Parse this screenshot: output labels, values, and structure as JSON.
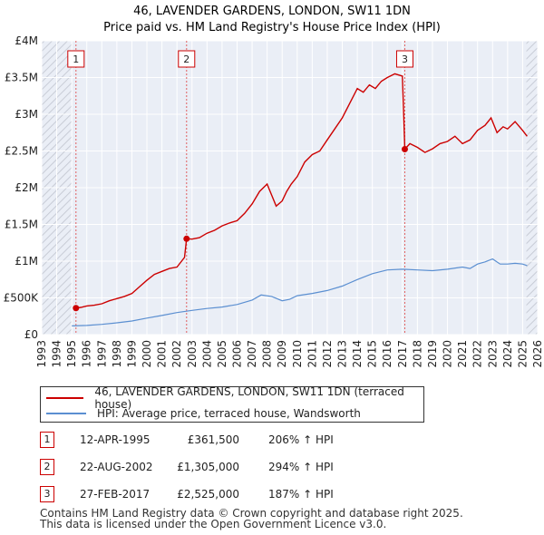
{
  "chart_data": {
    "type": "line",
    "title": "46, LAVENDER GARDENS, LONDON, SW11 1DN",
    "subtitle": "Price paid vs. HM Land Registry's House Price Index (HPI)",
    "xlabel": "",
    "ylabel": "",
    "xlim": [
      1993,
      2026
    ],
    "ylim": [
      0,
      4000000
    ],
    "x_ticks": [
      "1993",
      "1994",
      "1995",
      "1996",
      "1997",
      "1998",
      "1999",
      "2000",
      "2001",
      "2002",
      "2003",
      "2004",
      "2005",
      "2006",
      "2007",
      "2008",
      "2009",
      "2010",
      "2011",
      "2012",
      "2013",
      "2014",
      "2015",
      "2016",
      "2017",
      "2018",
      "2019",
      "2020",
      "2021",
      "2022",
      "2023",
      "2024",
      "2025",
      "2026"
    ],
    "y_ticks": [
      {
        "value": 0,
        "label": "£0"
      },
      {
        "value": 500000,
        "label": "£500K"
      },
      {
        "value": 1000000,
        "label": "£1M"
      },
      {
        "value": 1500000,
        "label": "£1.5M"
      },
      {
        "value": 2000000,
        "label": "£2M"
      },
      {
        "value": 2500000,
        "label": "£2.5M"
      },
      {
        "value": 3000000,
        "label": "£3M"
      },
      {
        "value": 3500000,
        "label": "£3.5M"
      },
      {
        "value": 4000000,
        "label": "£4M"
      }
    ],
    "grid": true,
    "series": [
      {
        "name": "46, LAVENDER GARDENS, LONDON, SW11 1DN (terraced house)",
        "color": "#cc0000",
        "x": [
          1995.28,
          1995.6,
          1996.0,
          1996.5,
          1997.0,
          1997.5,
          1998.0,
          1998.5,
          1999.0,
          1999.5,
          2000.0,
          2000.5,
          2001.0,
          2001.5,
          2002.0,
          2002.5,
          2002.64,
          2003.0,
          2003.5,
          2004.0,
          2004.5,
          2005.0,
          2005.5,
          2006.0,
          2006.5,
          2007.0,
          2007.5,
          2008.0,
          2008.3,
          2008.6,
          2009.0,
          2009.3,
          2009.6,
          2010.0,
          2010.5,
          2011.0,
          2011.5,
          2012.0,
          2012.5,
          2013.0,
          2013.5,
          2014.0,
          2014.4,
          2014.8,
          2015.2,
          2015.6,
          2016.0,
          2016.5,
          2017.0,
          2017.16,
          2017.5,
          2018.0,
          2018.5,
          2019.0,
          2019.5,
          2020.0,
          2020.5,
          2021.0,
          2021.5,
          2022.0,
          2022.5,
          2022.9,
          2023.3,
          2023.7,
          2024.0,
          2024.5,
          2025.0,
          2025.3
        ],
        "y": [
          361500,
          370000,
          390000,
          400000,
          420000,
          460000,
          490000,
          520000,
          560000,
          650000,
          740000,
          820000,
          860000,
          900000,
          920000,
          1050000,
          1305000,
          1300000,
          1320000,
          1380000,
          1420000,
          1480000,
          1520000,
          1550000,
          1650000,
          1780000,
          1950000,
          2050000,
          1900000,
          1750000,
          1820000,
          1950000,
          2050000,
          2150000,
          2350000,
          2450000,
          2500000,
          2650000,
          2800000,
          2950000,
          3150000,
          3350000,
          3300000,
          3400000,
          3350000,
          3450000,
          3500000,
          3550000,
          3520000,
          2525000,
          2600000,
          2550000,
          2480000,
          2530000,
          2600000,
          2630000,
          2700000,
          2600000,
          2650000,
          2780000,
          2850000,
          2950000,
          2750000,
          2830000,
          2800000,
          2900000,
          2780000,
          2700000
        ]
      },
      {
        "name": "HPI: Average price, terraced house, Wandsworth",
        "color": "#5b8fd1",
        "x": [
          1995.0,
          1996.0,
          1997.0,
          1998.0,
          1999.0,
          2000.0,
          2001.0,
          2002.0,
          2003.0,
          2004.0,
          2005.0,
          2006.0,
          2007.0,
          2007.6,
          2008.3,
          2009.0,
          2009.5,
          2010.0,
          2011.0,
          2012.0,
          2013.0,
          2014.0,
          2015.0,
          2016.0,
          2017.0,
          2018.0,
          2019.0,
          2020.0,
          2021.0,
          2021.5,
          2022.0,
          2022.5,
          2023.0,
          2023.5,
          2024.0,
          2024.5,
          2025.0,
          2025.3
        ],
        "y": [
          118000,
          125000,
          140000,
          160000,
          185000,
          225000,
          260000,
          300000,
          330000,
          355000,
          375000,
          410000,
          470000,
          540000,
          520000,
          460000,
          480000,
          530000,
          560000,
          600000,
          660000,
          750000,
          830000,
          880000,
          890000,
          880000,
          870000,
          890000,
          920000,
          900000,
          960000,
          990000,
          1030000,
          960000,
          960000,
          970000,
          960000,
          940000
        ]
      }
    ],
    "sales": [
      {
        "label": "1",
        "x": 1995.28,
        "y": 361500
      },
      {
        "label": "2",
        "x": 2002.64,
        "y": 1305000
      },
      {
        "label": "3",
        "x": 2017.16,
        "y": 2525000
      }
    ],
    "projection_from": 2025.25,
    "legend_position": "bottom-left"
  },
  "legend": {
    "property_label": "46, LAVENDER GARDENS, LONDON, SW11 1DN (terraced house)",
    "hpi_label": "HPI: Average price, terraced house, Wandsworth"
  },
  "table": [
    {
      "num": "1",
      "date": "12-APR-1995",
      "price": "£361,500",
      "hpi": "206% ↑ HPI"
    },
    {
      "num": "2",
      "date": "22-AUG-2002",
      "price": "£1,305,000",
      "hpi": "294% ↑ HPI"
    },
    {
      "num": "3",
      "date": "27-FEB-2017",
      "price": "£2,525,000",
      "hpi": "187% ↑ HPI"
    }
  ],
  "footer": {
    "line1": "Contains HM Land Registry data © Crown copyright and database right 2025.",
    "line2": "This data is licensed under the Open Government Licence v3.0."
  }
}
